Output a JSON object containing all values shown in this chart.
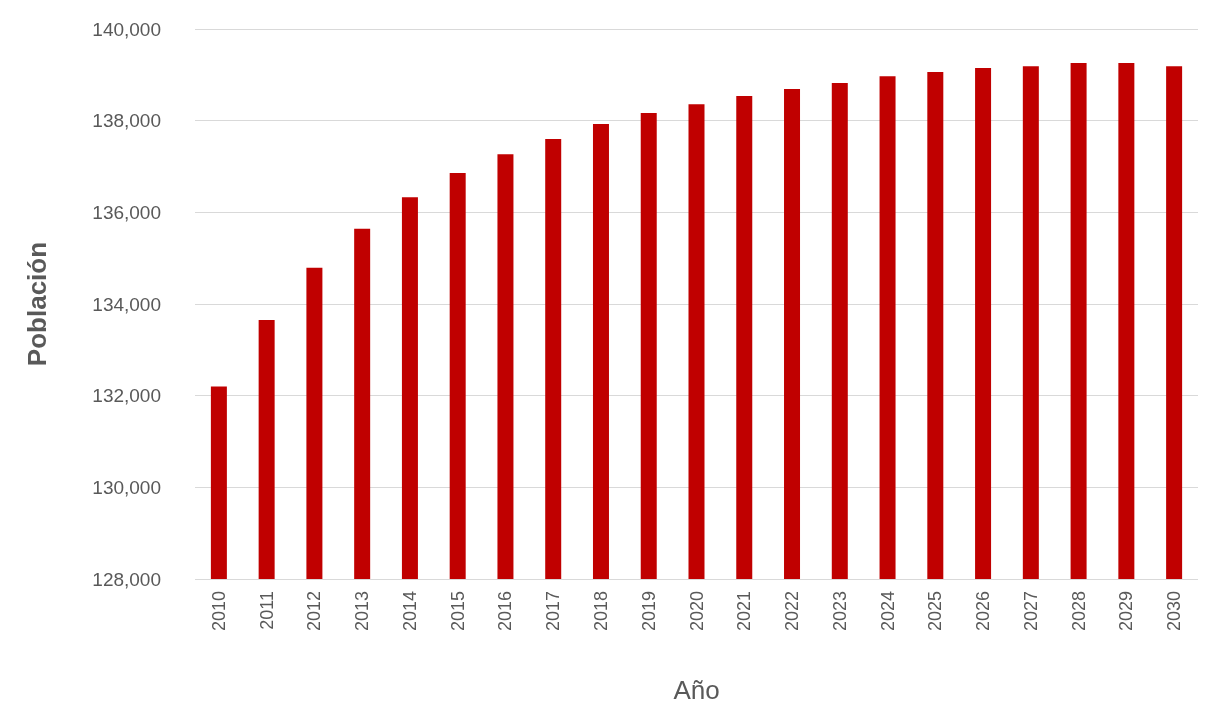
{
  "chart_data": {
    "type": "bar",
    "xlabel": "Año",
    "ylabel": "Población",
    "categories": [
      "2010",
      "2011",
      "2012",
      "2013",
      "2014",
      "2015",
      "2016",
      "2017",
      "2018",
      "2019",
      "2020",
      "2021",
      "2022",
      "2023",
      "2024",
      "2025",
      "2026",
      "2027",
      "2028",
      "2029",
      "2030"
    ],
    "values": [
      132200,
      133650,
      134790,
      135640,
      136330,
      136860,
      137270,
      137600,
      137930,
      138170,
      138360,
      138540,
      138690,
      138820,
      138970,
      139060,
      139150,
      139190,
      139260,
      139260,
      139190
    ],
    "color": "#c00000",
    "ylim": [
      128000,
      140000
    ],
    "yticks": [
      {
        "value": 128000,
        "label": "128,000"
      },
      {
        "value": 130000,
        "label": "130,000"
      },
      {
        "value": 132000,
        "label": "132,000"
      },
      {
        "value": 134000,
        "label": "134,000"
      },
      {
        "value": 136000,
        "label": "136,000"
      },
      {
        "value": 138000,
        "label": "138,000"
      },
      {
        "value": 140000,
        "label": "140,000"
      }
    ],
    "grid": "y"
  }
}
